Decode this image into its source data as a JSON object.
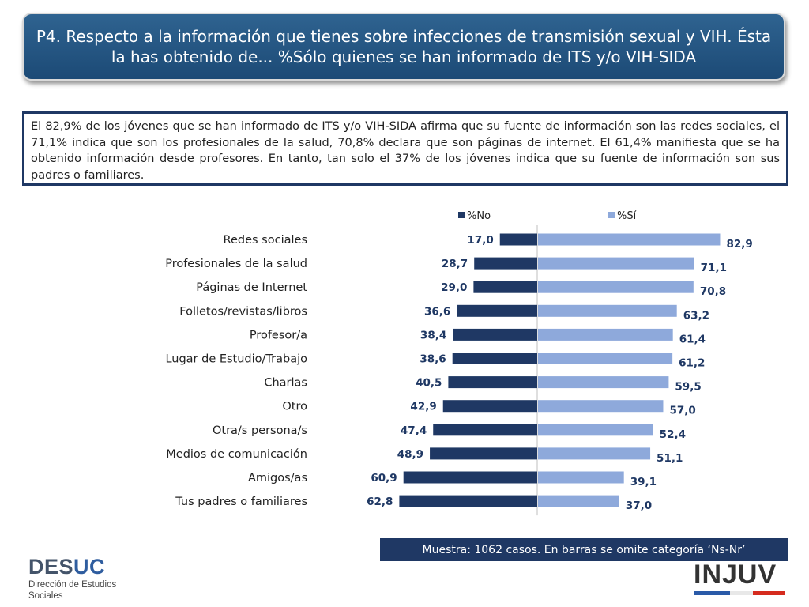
{
  "header": {
    "title": "P4. Respecto a la información que tienes sobre infecciones de transmisión sexual y VIH. Ésta la has obtenido de... %Sólo quienes se han informado de ITS y/o VIH-SIDA"
  },
  "summary": {
    "text": "El 82,9% de los jóvenes que se han informado de ITS y/o VIH-SIDA afirma que su fuente de información son las redes sociales, el 71,1% indica que son los profesionales de la salud, 70,8% declara que son páginas de internet. El 61,4% manifiesta que se ha obtenido información desde profesores. En tanto, tan solo el 37% de los jóvenes indica que su fuente de información son sus padres o familiares."
  },
  "chart_data": {
    "type": "bar",
    "orientation": "horizontal-diverging",
    "categories": [
      "Redes sociales",
      "Profesionales de la salud",
      "Páginas de Internet",
      "Folletos/revistas/libros",
      "Profesor/a",
      "Lugar de Estudio/Trabajo",
      "Charlas",
      "Otro",
      "Otra/s persona/s",
      "Medios de comunicación",
      "Amigos/as",
      "Tus padres o familiares"
    ],
    "series": [
      {
        "name": "%No",
        "values": [
          17.0,
          28.7,
          29.0,
          36.6,
          38.4,
          38.6,
          40.5,
          42.9,
          47.4,
          48.9,
          60.9,
          62.8
        ],
        "labels": [
          "17,0",
          "28,7",
          "29,0",
          "36,6",
          "38,4",
          "38,6",
          "40,5",
          "42,9",
          "47,4",
          "48,9",
          "60,9",
          "62,8"
        ],
        "color": "#1f3864"
      },
      {
        "name": "%Sí",
        "values": [
          82.9,
          71.1,
          70.8,
          63.2,
          61.4,
          61.2,
          59.5,
          57.0,
          52.4,
          51.1,
          39.1,
          37.0
        ],
        "labels": [
          "82,9",
          "71,1",
          "70,8",
          "63,2",
          "61,4",
          "61,2",
          "59,5",
          "57,0",
          "52,4",
          "51,1",
          "39,1",
          "37,0"
        ],
        "color": "#8ea9db"
      }
    ],
    "legend": "top"
  },
  "footer": {
    "sample_note": "Muestra: 1062 casos. En barras se omite categoría ‘Ns-Nr’",
    "desuc_name_1": "DES",
    "desuc_name_2": "UC",
    "desuc_sub_1": "Dirección de Estudios",
    "desuc_sub_2": "Sociales",
    "injuv_name": "INJUV"
  }
}
